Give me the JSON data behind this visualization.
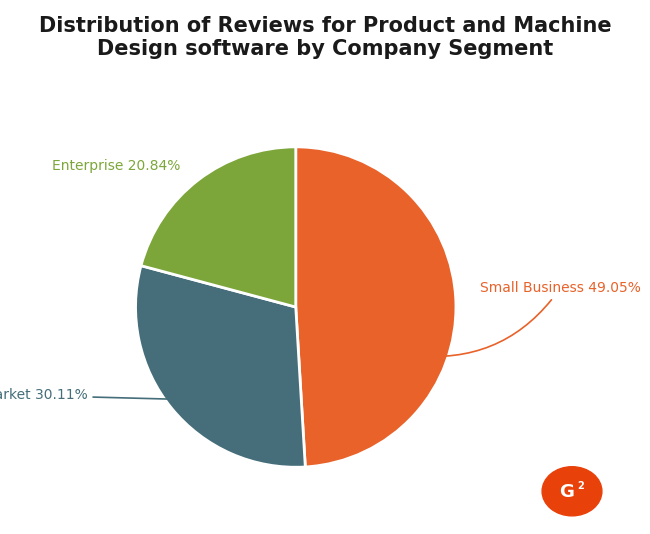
{
  "title": "Distribution of Reviews for Product and Machine\nDesign software by Company Segment",
  "segments": [
    {
      "label": "Small Business",
      "pct": 49.05,
      "color": "#E8622A"
    },
    {
      "label": "Mid-Market",
      "pct": 30.11,
      "color": "#456E7A"
    },
    {
      "label": "Enterprise",
      "pct": 20.84,
      "color": "#7DA63A"
    }
  ],
  "label_colors": {
    "Small Business": "#E8622A",
    "Mid-Market": "#456E7A",
    "Enterprise": "#7DA63A"
  },
  "startangle": 90,
  "background_color": "#ffffff",
  "title_fontsize": 15,
  "label_fontsize": 10,
  "g2_logo_color": "#E8410A"
}
